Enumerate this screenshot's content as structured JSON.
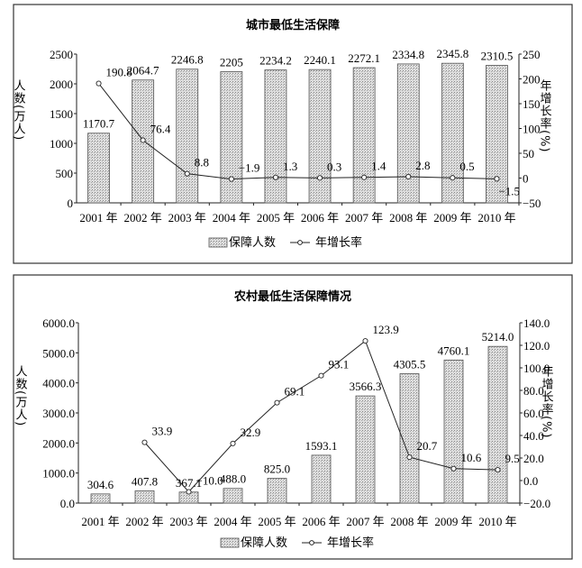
{
  "chart_data": [
    {
      "type": "bar+line",
      "title": "城市最低生活保障",
      "categories": [
        "2001 年",
        "2002 年",
        "2003 年",
        "2004 年",
        "2005 年",
        "2006 年",
        "2007 年",
        "2008 年",
        "2009 年",
        "2010 年"
      ],
      "series": [
        {
          "name": "保障人数",
          "type": "bar",
          "axis": "left",
          "values": [
            1170.7,
            2064.7,
            2246.8,
            2205,
            2234.2,
            2240.1,
            2272.1,
            2334.8,
            2345.8,
            2310.5
          ],
          "labels": [
            "1170.7",
            "2064.7",
            "2246.8",
            "2205",
            "2234.2",
            "2240.1",
            "2272.1",
            "2334.8",
            "2345.8",
            "2310.5"
          ]
        },
        {
          "name": "年增长率",
          "type": "line",
          "axis": "right",
          "values": [
            190.8,
            76.4,
            8.8,
            -1.9,
            1.3,
            0.3,
            1.4,
            2.8,
            0.5,
            -1.5
          ],
          "labels": [
            "190.8",
            "76.4",
            "8.8",
            "−1.9",
            "1.3",
            "0.3",
            "1.4",
            "2.8",
            "0.5",
            "−1.5"
          ]
        }
      ],
      "ylabel": "人数(万人)",
      "y2label": "年增长率(%)",
      "ylim": [
        0,
        2500
      ],
      "y2lim": [
        -50,
        250
      ],
      "yticks": [
        "0",
        "500",
        "1000",
        "1500",
        "2000",
        "2500"
      ],
      "y2ticks": [
        "−50",
        "0",
        "50",
        "100",
        "150",
        "200",
        "250"
      ],
      "grid": false,
      "legend_position": "bottom"
    },
    {
      "type": "bar+line",
      "title": "农村最低生活保障情况",
      "categories": [
        "2001 年",
        "2002 年",
        "2003 年",
        "2004 年",
        "2005 年",
        "2006 年",
        "2007 年",
        "2008 年",
        "2009 年",
        "2010 年"
      ],
      "series": [
        {
          "name": "保障人数",
          "type": "bar",
          "axis": "left",
          "values": [
            304.6,
            407.8,
            367.1,
            488.0,
            825.0,
            1593.1,
            3566.3,
            4305.5,
            4760.1,
            5214.0
          ],
          "labels": [
            "304.6",
            "407.8",
            "367.1",
            "488.0",
            "825.0",
            "1593.1",
            "3566.3",
            "4305.5",
            "4760.1",
            "5214.0"
          ]
        },
        {
          "name": "年增长率",
          "type": "line",
          "axis": "right",
          "values": [
            null,
            33.9,
            -10.0,
            32.9,
            69.1,
            93.1,
            123.9,
            20.7,
            10.6,
            9.5
          ],
          "labels": [
            "",
            "33.9",
            "−10.0",
            "32.9",
            "69.1",
            "93.1",
            "123.9",
            "20.7",
            "10.6",
            "9.5"
          ]
        }
      ],
      "ylabel": "人数(万人)",
      "y2label": "年增长率(%)",
      "ylim": [
        0,
        6000
      ],
      "y2lim": [
        -20,
        140
      ],
      "yticks": [
        "0.0",
        "1000.0",
        "2000.0",
        "3000.0",
        "4000.0",
        "5000.0",
        "6000.0"
      ],
      "y2ticks": [
        "−20.0",
        "0.0",
        "20.0",
        "40.0",
        "60.0",
        "80.0",
        "100.0",
        "120.0",
        "140.0"
      ],
      "grid": false,
      "legend_position": "bottom"
    }
  ],
  "colors": {
    "bar_fill": "#cfcfcf",
    "line": "#222222"
  }
}
